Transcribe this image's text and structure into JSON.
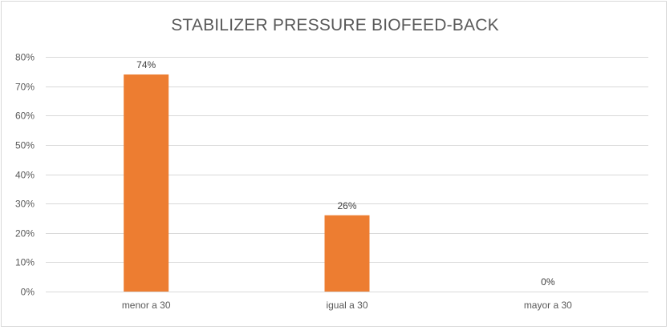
{
  "chart_data": {
    "type": "bar",
    "title": "STABILIZER  PRESSURE BIOFEED-BACK",
    "categories": [
      "menor a 30",
      "igual a 30",
      "mayor a 30"
    ],
    "values": [
      74,
      26,
      0
    ],
    "data_labels": [
      "74%",
      "26%",
      "0%"
    ],
    "ylim": [
      0,
      80
    ],
    "yticks": [
      0,
      10,
      20,
      30,
      40,
      50,
      60,
      70,
      80
    ],
    "ytick_labels": [
      "0%",
      "10%",
      "20%",
      "30%",
      "40%",
      "50%",
      "60%",
      "70%",
      "80%"
    ],
    "xlabel": "",
    "ylabel": "",
    "grid": true,
    "legend": "none",
    "bar_color": "#ED7D31",
    "grid_color": "#D9D9D9"
  }
}
